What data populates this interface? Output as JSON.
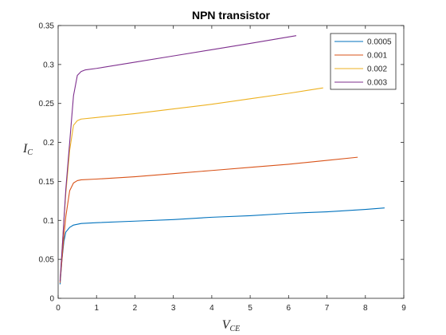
{
  "chart_data": {
    "type": "line",
    "title": "NPN transistor",
    "xlabel": {
      "main": "V",
      "sub": "CE"
    },
    "ylabel": {
      "main": "I",
      "sub": "C"
    },
    "xlim": [
      0,
      9
    ],
    "ylim": [
      0,
      0.35
    ],
    "xticks": [
      0,
      1,
      2,
      3,
      4,
      5,
      6,
      7,
      8,
      9
    ],
    "yticks": [
      0,
      0.05,
      0.1,
      0.15,
      0.2,
      0.25,
      0.3,
      0.35
    ],
    "xtick_labels": [
      "0",
      "1",
      "2",
      "3",
      "4",
      "5",
      "6",
      "7",
      "8",
      "9"
    ],
    "ytick_labels": [
      "0",
      "0.05",
      "0.1",
      "0.15",
      "0.2",
      "0.25",
      "0.3",
      "0.35"
    ],
    "grid": false,
    "legend": "top-right",
    "series": [
      {
        "name": "0.0005",
        "color": "#0072BD",
        "x": [
          0.05,
          0.1,
          0.15,
          0.2,
          0.3,
          0.4,
          0.5,
          0.6,
          1.0,
          2.0,
          3.0,
          4.0,
          5.0,
          6.0,
          7.0,
          8.0,
          8.5
        ],
        "y": [
          0.018,
          0.05,
          0.073,
          0.085,
          0.091,
          0.094,
          0.095,
          0.096,
          0.097,
          0.099,
          0.101,
          0.104,
          0.106,
          0.109,
          0.111,
          0.114,
          0.116
        ]
      },
      {
        "name": "0.001",
        "color": "#D95319",
        "x": [
          0.05,
          0.1,
          0.15,
          0.2,
          0.3,
          0.4,
          0.5,
          0.6,
          1.0,
          2.0,
          3.0,
          4.0,
          5.0,
          6.0,
          7.0,
          7.8
        ],
        "y": [
          0.02,
          0.05,
          0.08,
          0.105,
          0.138,
          0.148,
          0.151,
          0.152,
          0.153,
          0.156,
          0.16,
          0.164,
          0.168,
          0.172,
          0.177,
          0.181
        ]
      },
      {
        "name": "0.002",
        "color": "#EDB120",
        "x": [
          0.05,
          0.1,
          0.15,
          0.2,
          0.3,
          0.4,
          0.5,
          0.6,
          1.0,
          2.0,
          3.0,
          4.0,
          5.0,
          6.0,
          6.9
        ],
        "y": [
          0.022,
          0.06,
          0.1,
          0.135,
          0.19,
          0.222,
          0.228,
          0.23,
          0.232,
          0.237,
          0.243,
          0.249,
          0.256,
          0.263,
          0.27
        ]
      },
      {
        "name": "0.003",
        "color": "#7E2F8E",
        "x": [
          0.05,
          0.1,
          0.15,
          0.2,
          0.3,
          0.4,
          0.5,
          0.6,
          0.7,
          1.0,
          2.0,
          3.0,
          4.0,
          5.0,
          6.2
        ],
        "y": [
          0.022,
          0.06,
          0.1,
          0.14,
          0.2,
          0.26,
          0.286,
          0.291,
          0.293,
          0.295,
          0.303,
          0.311,
          0.319,
          0.327,
          0.337
        ]
      }
    ]
  }
}
